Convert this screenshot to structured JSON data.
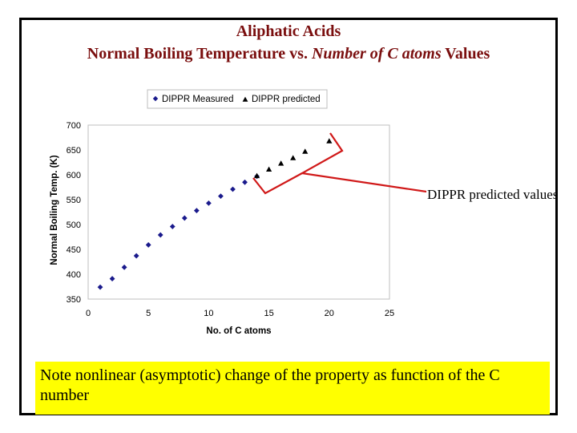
{
  "slide": {
    "title_line_1": "Aliphatic Acids",
    "title_line_2_part_1": "Normal Boiling Temperature vs. ",
    "title_line_2_italic": "Number of C atoms",
    "title_line_2_part_2": " Values",
    "callout_label": "DIPPR predicted values",
    "note": "Note nonlinear (asymptotic) change of the property as function of the C number"
  },
  "colors": {
    "title": "#7a0e0e",
    "callout_line": "#d01818",
    "note_background": "#ffff00",
    "measured_marker": "#1a1a8c",
    "predicted_marker": "#000000"
  },
  "chart_data": {
    "type": "scatter",
    "xlabel": "No. of C atoms",
    "ylabel": "Normal Boiling Temp. (K)",
    "xlim": [
      0,
      25
    ],
    "ylim": [
      350,
      700
    ],
    "x_ticks": [
      0,
      5,
      10,
      15,
      20,
      25
    ],
    "y_ticks": [
      350,
      400,
      450,
      500,
      550,
      600,
      650,
      700
    ],
    "grid": false,
    "legend_position": "top",
    "series": [
      {
        "name": "DIPPR Measured",
        "marker": "diamond",
        "x": [
          1,
          2,
          3,
          4,
          5,
          6,
          7,
          8,
          9,
          10,
          11,
          12,
          13,
          14
        ],
        "y": [
          374,
          391,
          414,
          437,
          459,
          479,
          496,
          513,
          528,
          543,
          557,
          571,
          585,
          597
        ]
      },
      {
        "name": "DIPPR predicted",
        "marker": "triangle",
        "x": [
          14,
          15,
          16,
          17,
          18,
          20
        ],
        "y": [
          598,
          611,
          623,
          634,
          647,
          668
        ]
      }
    ]
  }
}
